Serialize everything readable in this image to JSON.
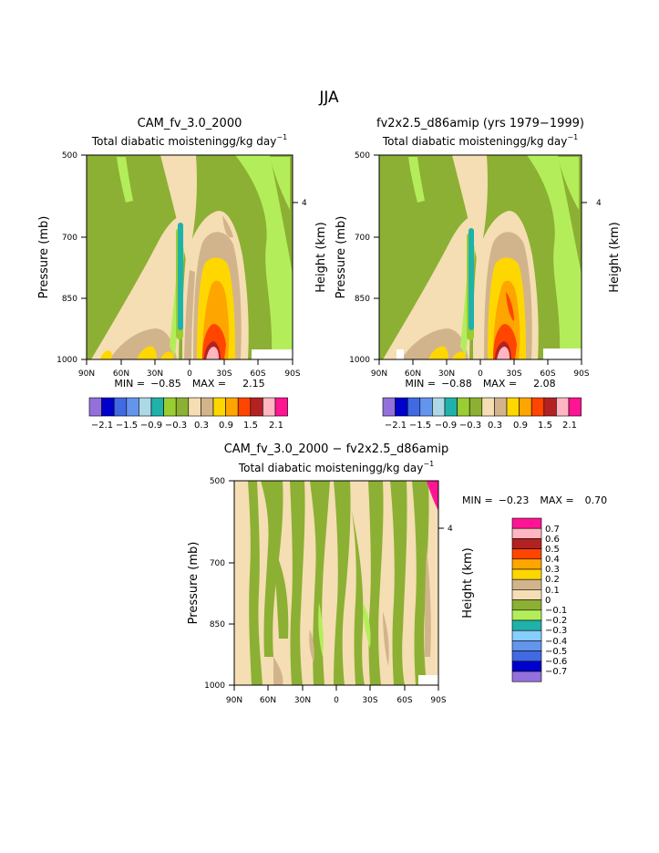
{
  "figure_title": "JJA",
  "colors": {
    "level_colors": [
      "#9370DB",
      "#0000CD",
      "#4169E1",
      "#6495ED",
      "#ADD8E6",
      "#20B2AA",
      "#9ACD32",
      "#8CB033",
      "#F5DEB3",
      "#D2B48C",
      "#FFD700",
      "#FFA500",
      "#FF4500",
      "#B22222",
      "#FFB6C1",
      "#FF1493"
    ],
    "diff_colors": [
      "#9370DB",
      "#0000CD",
      "#4169E1",
      "#6495ED",
      "#87CEFA",
      "#20B2AA",
      "#B3EE5A",
      "#8CB033",
      "#F5DEB3",
      "#D2B48C",
      "#FFD700",
      "#FFA500",
      "#FF4500",
      "#B22222",
      "#FFB6C1",
      "#FF1493"
    ]
  },
  "chart_data": [
    {
      "type": "heatmap",
      "title": "CAM_fv_3.0_2000",
      "subtitle": "Total diabatic moistening",
      "units_label": "g/kg day",
      "units_exponent": "−1",
      "ylabel": "Pressure (mb)",
      "ylabel_right": "Height (km)",
      "x_ticks": [
        "90N",
        "60N",
        "30N",
        "0",
        "30S",
        "60S",
        "90S"
      ],
      "x_values": [
        90,
        60,
        30,
        0,
        -30,
        -60,
        -90
      ],
      "y_ticks": [
        "500",
        "700",
        "850",
        "1000"
      ],
      "y_values": [
        500,
        700,
        850,
        1000
      ],
      "height_ticks": [
        "4"
      ],
      "min_label": "MIN =",
      "min": "−0.85",
      "max_label": "MAX =",
      "max": "2.15",
      "colorbar_labels": [
        "−2.1",
        "−1.5",
        "−0.9",
        "−0.3",
        "0.3",
        "0.9",
        "1.5",
        "2.1"
      ],
      "features": [
        {
          "lat": 5,
          "p_top": 680,
          "p_bottom": 940,
          "value": -0.6
        },
        {
          "lat": -20,
          "p_top": 715,
          "p_bottom": 990,
          "value": 0.6
        },
        {
          "lat": -20,
          "p_top": 870,
          "p_bottom": 1000,
          "value": 1.8
        },
        {
          "lat": 30,
          "p_top": 960,
          "p_bottom": 1000,
          "value": 0.5
        }
      ]
    },
    {
      "type": "heatmap",
      "title": "fv2x2.5_d86amip (yrs 1979−1999)",
      "subtitle": "Total diabatic moistening",
      "units_label": "g/kg day",
      "units_exponent": "−1",
      "ylabel": "Pressure (mb)",
      "ylabel_right": "Height (km)",
      "x_ticks": [
        "90N",
        "60N",
        "30N",
        "0",
        "30S",
        "60S",
        "90S"
      ],
      "x_values": [
        90,
        60,
        30,
        0,
        -30,
        -60,
        -90
      ],
      "y_ticks": [
        "500",
        "700",
        "850",
        "1000"
      ],
      "y_values": [
        500,
        700,
        850,
        1000
      ],
      "height_ticks": [
        "4"
      ],
      "min_label": "MIN =",
      "min": "−0.88",
      "max_label": "MAX =",
      "max": "2.08",
      "colorbar_labels": [
        "−2.1",
        "−1.5",
        "−0.9",
        "−0.3",
        "0.3",
        "0.9",
        "1.5",
        "2.1"
      ],
      "features": [
        {
          "lat": 5,
          "p_top": 700,
          "p_bottom": 950,
          "value": -0.6
        },
        {
          "lat": -20,
          "p_top": 720,
          "p_bottom": 990,
          "value": 0.6
        },
        {
          "lat": -20,
          "p_top": 880,
          "p_bottom": 1000,
          "value": 1.8
        }
      ]
    },
    {
      "type": "heatmap",
      "title": "CAM_fv_3.0_2000 − fv2x2.5_d86amip",
      "subtitle": "Total diabatic moistening",
      "units_label": "g/kg day",
      "units_exponent": "−1",
      "ylabel": "Pressure (mb)",
      "ylabel_right": "Height (km)",
      "x_ticks": [
        "90N",
        "60N",
        "30N",
        "0",
        "30S",
        "60S",
        "90S"
      ],
      "x_values": [
        90,
        60,
        30,
        0,
        -30,
        -60,
        -90
      ],
      "y_ticks": [
        "500",
        "700",
        "850",
        "1000"
      ],
      "y_values": [
        500,
        700,
        850,
        1000
      ],
      "height_ticks": [
        "4"
      ],
      "min_label": "MIN =",
      "min": "−0.23",
      "max_label": "MAX =",
      "max": "0.70",
      "colorbar_labels": [
        "0.7",
        "0.6",
        "0.5",
        "0.4",
        "0.3",
        "0.2",
        "0.1",
        "0",
        "−0.1",
        "−0.2",
        "−0.3",
        "−0.4",
        "−0.5",
        "−0.6",
        "−0.7"
      ]
    }
  ]
}
